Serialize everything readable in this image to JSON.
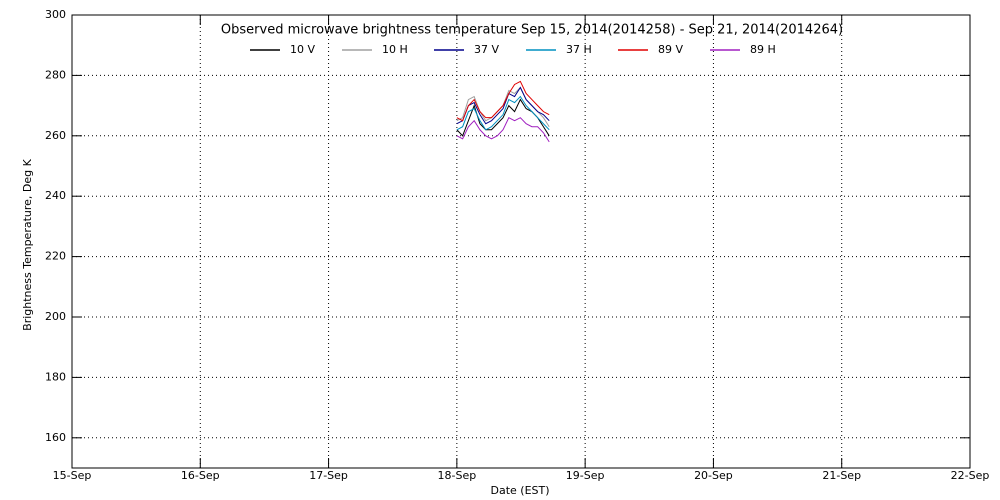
{
  "chart_data": {
    "type": "line",
    "title": "Observed microwave brightness temperature Sep 15, 2014(2014258) - Sep 21, 2014(2014264)",
    "x_label": "Date (EST)",
    "y_label": "Brightness Temperature, Deg K",
    "x": [
      18.0,
      18.045,
      18.09,
      18.135,
      18.18,
      18.225,
      18.27,
      18.315,
      18.36,
      18.405,
      18.45,
      18.495,
      18.54,
      18.585,
      18.63,
      18.675,
      18.72
    ],
    "series": [
      {
        "name": "10 V",
        "color": "#000000",
        "values": [
          262,
          260,
          265,
          270,
          264,
          262,
          262,
          264,
          266,
          270,
          268,
          272,
          269,
          268,
          266,
          263,
          260
        ]
      },
      {
        "name": "10 H",
        "color": "#a0a0a0",
        "values": [
          265,
          266,
          272,
          273,
          268,
          265,
          266,
          268,
          270,
          275,
          274,
          276,
          272,
          270,
          268,
          266,
          263
        ]
      },
      {
        "name": "37 V",
        "color": "#00008b",
        "values": [
          264,
          265,
          270,
          271,
          267,
          264,
          265,
          267,
          269,
          274,
          273,
          276,
          272,
          270,
          268,
          267,
          265
        ]
      },
      {
        "name": "37 H",
        "color": "#0090c0",
        "values": [
          262,
          263,
          268,
          269,
          265,
          262,
          263,
          265,
          267,
          272,
          271,
          273,
          270,
          268,
          266,
          264,
          262
        ]
      },
      {
        "name": "89 V",
        "color": "#e00000",
        "values": [
          266,
          265,
          270,
          272,
          268,
          266,
          266,
          268,
          270,
          274,
          277,
          278,
          274,
          272,
          270,
          268,
          267
        ]
      },
      {
        "name": "89 H",
        "color": "#a020c0",
        "values": [
          260,
          259,
          263,
          265,
          262,
          260,
          259,
          260,
          262,
          266,
          265,
          266,
          264,
          263,
          263,
          261,
          258
        ]
      }
    ],
    "xlim": [
      15,
      22
    ],
    "xticks": [
      {
        "value": 15,
        "label": "15-Sep"
      },
      {
        "value": 16,
        "label": "16-Sep"
      },
      {
        "value": 17,
        "label": "17-Sep"
      },
      {
        "value": 18,
        "label": "18-Sep"
      },
      {
        "value": 19,
        "label": "19-Sep"
      },
      {
        "value": 20,
        "label": "20-Sep"
      },
      {
        "value": 21,
        "label": "21-Sep"
      },
      {
        "value": 22,
        "label": "22-Sep"
      }
    ],
    "ylim": [
      150,
      300
    ],
    "yticks": [
      160,
      180,
      200,
      220,
      240,
      260,
      280,
      300
    ],
    "grid": true
  }
}
